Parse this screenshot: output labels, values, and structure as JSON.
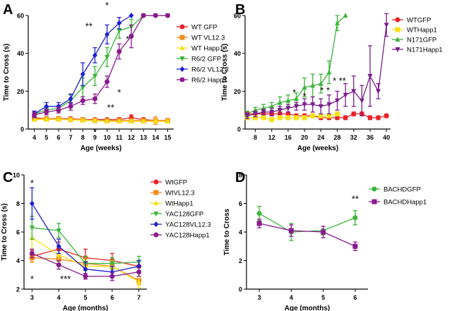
{
  "chart_data": [
    {
      "panel": "A",
      "type": "line",
      "xlabel": "Age (weeks)",
      "ylabel": "Time to Cross (s)",
      "xlim": [
        3.5,
        15.5
      ],
      "ylim": [
        0,
        60
      ],
      "xticks": [
        "4",
        "5",
        "6",
        "7",
        "8",
        "9",
        "10",
        "11",
        "12",
        "13",
        "14",
        "15"
      ],
      "yticks": [
        "0",
        "20",
        "40",
        "60"
      ],
      "legend_position": "right",
      "series": [
        {
          "name": "WT GFP",
          "color": "#e8232a",
          "marker": "circle",
          "x": [
            4,
            5,
            6,
            7,
            8,
            9,
            10,
            11,
            12,
            13,
            14,
            15
          ],
          "values": [
            6,
            5.5,
            5.5,
            5.5,
            5,
            5,
            5,
            5,
            6,
            5,
            4.5,
            4.5
          ],
          "err": [
            1,
            0.8,
            0.8,
            0.8,
            0.8,
            0.8,
            0.8,
            1,
            1.5,
            1,
            1,
            1
          ]
        },
        {
          "name": "WT VL12.3",
          "color": "#f28c1c",
          "marker": "square",
          "x": [
            4,
            5,
            6,
            7,
            8,
            9,
            10,
            11,
            12,
            13,
            14,
            15
          ],
          "values": [
            5.5,
            5.5,
            5.5,
            5,
            5,
            4.5,
            4.5,
            4.5,
            4.5,
            4.5,
            4.5,
            4.5
          ],
          "err": [
            0.8,
            0.8,
            0.8,
            0.8,
            0.8,
            0.8,
            0.8,
            0.8,
            0.8,
            1,
            2,
            1
          ]
        },
        {
          "name": "WT Happ1",
          "color": "#f5e11a",
          "marker": "triangle-up",
          "x": [
            4,
            5,
            6,
            7,
            8,
            9,
            10,
            11,
            12,
            13,
            14,
            15
          ],
          "values": [
            5,
            5,
            5,
            5,
            4.5,
            4.5,
            4,
            4,
            4,
            4,
            4,
            4
          ],
          "err": [
            0.8,
            0.8,
            0.8,
            0.8,
            0.8,
            0.8,
            0.8,
            0.8,
            0.8,
            0.8,
            0.8,
            0.8
          ]
        },
        {
          "name": "R6/2 GFP",
          "color": "#3ab53a",
          "marker": "triangle-down",
          "x": [
            4,
            5,
            6,
            7,
            8,
            9,
            10,
            11,
            12,
            13,
            14,
            15
          ],
          "values": [
            8,
            10,
            11,
            15,
            22,
            28,
            38,
            52,
            54,
            60,
            60,
            60
          ],
          "err": [
            1.5,
            1.5,
            1.5,
            3,
            5,
            5,
            5,
            4,
            4,
            0,
            0,
            0
          ]
        },
        {
          "name": "R6/2 VL12.3",
          "color": "#1f1fd0",
          "marker": "diamond",
          "x": [
            4,
            5,
            6,
            7,
            8,
            9,
            10,
            11,
            12
          ],
          "values": [
            8,
            12,
            12,
            16,
            29,
            39,
            50,
            56,
            60
          ],
          "err": [
            1.5,
            2,
            2,
            2.5,
            6,
            4,
            5,
            3,
            0
          ]
        },
        {
          "name": "R6/2 Happ1",
          "color": "#8b1a8f",
          "marker": "circle",
          "x": [
            4,
            5,
            6,
            7,
            8,
            9,
            10,
            11,
            12,
            13,
            14,
            15
          ],
          "values": [
            7.5,
            9,
            10,
            12,
            15,
            16,
            25,
            41,
            49,
            60,
            60,
            60
          ],
          "err": [
            1.5,
            1.5,
            1.5,
            2,
            2,
            2.5,
            3,
            4,
            6,
            0,
            0,
            0
          ]
        }
      ],
      "annotations": [
        {
          "text": "*",
          "x": 10,
          "y": 66
        },
        {
          "text": "**",
          "x": 8.5,
          "y": 55
        },
        {
          "text": "*",
          "x": 11.7,
          "y": 48
        },
        {
          "text": "*",
          "x": 11,
          "y": 20
        },
        {
          "text": "**",
          "x": 10.3,
          "y": 12
        },
        {
          "text": "*",
          "x": 9,
          "y": -1
        }
      ]
    },
    {
      "panel": "B",
      "type": "line",
      "xlabel": "Age (weeks)",
      "ylabel": "Time to Cross (s)",
      "xlim": [
        5.5,
        41
      ],
      "ylim": [
        0,
        60
      ],
      "xticks": [
        "8",
        "12",
        "16",
        "20",
        "24",
        "28",
        "32",
        "36",
        "40"
      ],
      "yticks": [
        "0",
        "20",
        "40",
        "60"
      ],
      "legend_position": "top-right",
      "series": [
        {
          "name": "WTGFP",
          "color": "#e8232a",
          "marker": "circle",
          "x": [
            6,
            8,
            10,
            12,
            14,
            16,
            18,
            20,
            22,
            24,
            26,
            28,
            30,
            32,
            34,
            36,
            38,
            40
          ],
          "values": [
            8,
            8,
            8,
            8,
            8,
            8,
            7,
            7,
            7,
            6,
            6,
            6,
            6,
            8,
            8,
            6,
            6,
            7
          ],
          "err": [
            1,
            1,
            1,
            1,
            1,
            1,
            1,
            1,
            1,
            1,
            1,
            1,
            1,
            1,
            1,
            1,
            1,
            1
          ]
        },
        {
          "name": "WTHapp1",
          "color": "#f5e11a",
          "marker": "square",
          "x": [
            6,
            8,
            10,
            12,
            14,
            16,
            18,
            20,
            22,
            24,
            26,
            28
          ],
          "values": [
            6,
            6,
            6,
            5,
            6,
            6,
            6,
            6,
            7,
            7,
            7,
            8
          ],
          "err": [
            1,
            1,
            1,
            1,
            1,
            1,
            1,
            1,
            1,
            1,
            1,
            1
          ]
        },
        {
          "name": "N171GFP",
          "color": "#3ab53a",
          "marker": "triangle-up",
          "x": [
            6,
            8,
            10,
            12,
            14,
            16,
            18,
            20,
            22,
            24,
            26,
            28,
            30
          ],
          "values": [
            8,
            10,
            11,
            12,
            14,
            15,
            16,
            22,
            23,
            24,
            30,
            56,
            60
          ],
          "err": [
            1.5,
            1.5,
            2,
            2,
            3,
            3,
            3,
            5,
            6,
            5,
            6,
            4,
            0
          ]
        },
        {
          "name": "N171Happ1",
          "color": "#7b1e8c",
          "marker": "triangle-down",
          "x": [
            6,
            8,
            10,
            12,
            14,
            16,
            18,
            20,
            22,
            24,
            26,
            28,
            30,
            32,
            34,
            36,
            38,
            40
          ],
          "values": [
            7,
            8,
            9,
            9,
            10,
            11,
            12,
            13,
            13,
            12,
            13,
            15,
            18,
            20,
            15,
            28,
            20,
            55
          ],
          "err": [
            1.5,
            1.5,
            1.5,
            2,
            2,
            2,
            2,
            3,
            4,
            4,
            5,
            5,
            6,
            8,
            8,
            16,
            4,
            6
          ]
        }
      ],
      "annotations": [
        {
          "text": "*",
          "x": 17.5,
          "y": 20
        },
        {
          "text": "*",
          "x": 20,
          "y": 18
        },
        {
          "text": "* *",
          "x": 25,
          "y": 21
        },
        {
          "text": "* **",
          "x": 28.5,
          "y": 26
        }
      ]
    },
    {
      "panel": "C",
      "type": "line",
      "xlabel": "Age (months)",
      "ylabel": "Time to Cross (s)",
      "xlim": [
        2.7,
        7.3
      ],
      "ylim": [
        2,
        10
      ],
      "xticks": [
        "3",
        "4",
        "5",
        "6",
        "7"
      ],
      "yticks": [
        "2",
        "4",
        "6",
        "8",
        "10"
      ],
      "legend_position": "right",
      "series": [
        {
          "name": "WtGFP",
          "color": "#e8232a",
          "marker": "circle",
          "x": [
            3,
            4,
            5,
            6,
            7
          ],
          "values": [
            4.3,
            4.8,
            4.2,
            4.0,
            3.6
          ],
          "err": [
            0.4,
            0.5,
            0.6,
            0.5,
            0.4
          ]
        },
        {
          "name": "WtVL12.3",
          "color": "#f28c1c",
          "marker": "square",
          "x": [
            3,
            4,
            5,
            6,
            7
          ],
          "values": [
            4.2,
            4.1,
            3.8,
            3.6,
            2.6
          ],
          "err": [
            0.3,
            0.3,
            0.4,
            0.4,
            0.3
          ]
        },
        {
          "name": "WtHapp1",
          "color": "#f5e11a",
          "marker": "triangle-up",
          "x": [
            3,
            4,
            5,
            6,
            7
          ],
          "values": [
            5.6,
            4.4,
            3.6,
            3.6,
            2.5
          ],
          "err": [
            0.8,
            0.6,
            0.5,
            0.4,
            0.4
          ]
        },
        {
          "name": "YAC128GFP",
          "color": "#3ab53a",
          "marker": "triangle-down",
          "x": [
            3,
            4,
            5,
            6,
            7
          ],
          "values": [
            6.3,
            6.1,
            3.8,
            3.8,
            3.9
          ],
          "err": [
            0.8,
            0.5,
            0.5,
            0.4,
            0.4
          ]
        },
        {
          "name": "YAC128VL12.3",
          "color": "#1f1fd0",
          "marker": "diamond",
          "x": [
            3,
            4,
            5,
            6,
            7
          ],
          "values": [
            8.0,
            5.0,
            3.4,
            3.2,
            3.6
          ],
          "err": [
            1.1,
            0.5,
            0.5,
            0.4,
            0.4
          ]
        },
        {
          "name": "YAC128Happ1",
          "color": "#8b1a8f",
          "marker": "circle",
          "x": [
            3,
            4,
            5,
            6,
            7
          ],
          "values": [
            4.5,
            3.7,
            2.9,
            2.9,
            3.2
          ],
          "err": [
            0.3,
            0.3,
            0.2,
            0.3,
            0.3
          ]
        }
      ],
      "annotations": [
        {
          "text": "*",
          "x": 3,
          "y": 9.5
        },
        {
          "text": "*",
          "x": 3,
          "y": 2.8
        },
        {
          "text": "***",
          "x": 4.25,
          "y": 2.8
        }
      ]
    },
    {
      "panel": "D",
      "type": "line",
      "xlabel": "Age (months)",
      "ylabel": "Time to  Cross",
      "xlim": [
        2.6,
        6.4
      ],
      "ylim": [
        0,
        8
      ],
      "xticks": [
        "3",
        "4",
        "5",
        "6"
      ],
      "yticks": [
        "0",
        "2",
        "4",
        "6",
        "8"
      ],
      "legend_position": "top-right",
      "series": [
        {
          "name": "BACHDGFP",
          "color": "#3ab53a",
          "marker": "circle",
          "x": [
            3,
            4,
            5,
            6
          ],
          "values": [
            5.3,
            4.0,
            4.1,
            5.0
          ],
          "err": [
            0.5,
            0.6,
            0.3,
            0.5
          ]
        },
        {
          "name": "BACHDHapp1",
          "color": "#8b1a8f",
          "marker": "square",
          "x": [
            3,
            4,
            5,
            6
          ],
          "values": [
            4.6,
            4.1,
            4.0,
            3.0
          ],
          "err": [
            0.3,
            0.4,
            0.4,
            0.3
          ]
        }
      ],
      "annotations": [
        {
          "text": "**",
          "x": 6,
          "y": 6.4
        }
      ]
    }
  ],
  "panel_labels": [
    "A",
    "B",
    "C",
    "D"
  ]
}
